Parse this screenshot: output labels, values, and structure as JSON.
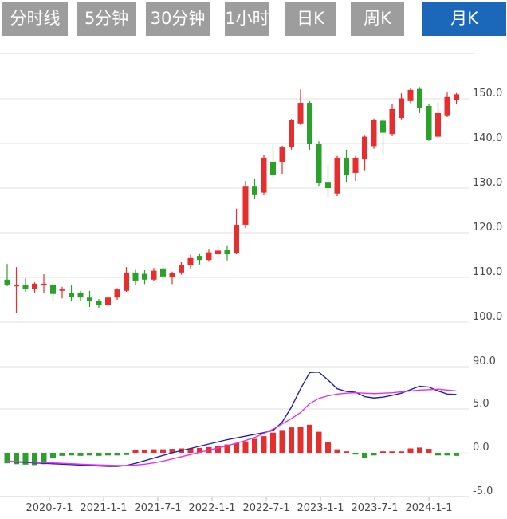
{
  "tabs": [
    {
      "label": "分时线",
      "active": false
    },
    {
      "label": "5分钟",
      "active": false
    },
    {
      "label": "30分钟",
      "active": false
    },
    {
      "label": "1小时",
      "active": false
    },
    {
      "label": "日K",
      "active": false
    },
    {
      "label": "周K",
      "active": false
    },
    {
      "label": "月K",
      "active": true
    }
  ],
  "chart_data": {
    "type": "candlestick+macd",
    "title": "",
    "interval": "monthly",
    "price_axis": {
      "ticks": [
        150,
        140,
        130,
        120,
        110,
        100,
        90
      ],
      "labels": [
        "150.0",
        "140.0",
        "130.0",
        "120.0",
        "110.0",
        "100.0",
        "90.0"
      ],
      "range": [
        90,
        160
      ]
    },
    "macd_axis": {
      "ticks": [
        5,
        0,
        -5
      ],
      "labels": [
        "5.0",
        "0.0",
        "-5.0"
      ],
      "range": [
        -7.5,
        9.8
      ]
    },
    "x_axis_labels": [
      "2020-7-1",
      "2021-1-1",
      "2021-7-1",
      "2022-1-1",
      "2022-7-1",
      "2023-1-1",
      "2023-7-1",
      "2024-1-1"
    ],
    "candles": [
      {
        "d": "2020-03",
        "o": 109.5,
        "h": 113.0,
        "l": 108.0,
        "c": 108.4
      },
      {
        "d": "2020-04",
        "o": 108.0,
        "h": 112.3,
        "l": 102.1,
        "c": 108.3
      },
      {
        "d": "2020-05",
        "o": 108.4,
        "h": 109.8,
        "l": 106.8,
        "c": 107.5
      },
      {
        "d": "2020-06",
        "o": 107.5,
        "h": 108.9,
        "l": 106.6,
        "c": 108.6
      },
      {
        "d": "2020-07",
        "o": 108.2,
        "h": 110.7,
        "l": 106.6,
        "c": 108.6
      },
      {
        "d": "2020-08",
        "o": 108.4,
        "h": 108.8,
        "l": 104.6,
        "c": 106.3
      },
      {
        "d": "2020-09",
        "o": 107.0,
        "h": 107.9,
        "l": 105.3,
        "c": 107.3
      },
      {
        "d": "2020-10",
        "o": 106.6,
        "h": 108.2,
        "l": 104.6,
        "c": 105.7
      },
      {
        "d": "2020-11",
        "o": 106.6,
        "h": 107.0,
        "l": 104.8,
        "c": 105.5
      },
      {
        "d": "2020-12",
        "o": 105.5,
        "h": 107.0,
        "l": 103.4,
        "c": 104.8
      },
      {
        "d": "2021-01",
        "o": 104.8,
        "h": 105.2,
        "l": 103.2,
        "c": 103.8
      },
      {
        "d": "2021-02",
        "o": 103.9,
        "h": 105.8,
        "l": 103.5,
        "c": 105.5
      },
      {
        "d": "2021-03",
        "o": 105.5,
        "h": 107.6,
        "l": 105.0,
        "c": 107.3
      },
      {
        "d": "2021-04",
        "o": 107.0,
        "h": 112.3,
        "l": 106.8,
        "c": 111.1
      },
      {
        "d": "2021-05",
        "o": 111.1,
        "h": 111.7,
        "l": 108.2,
        "c": 109.3
      },
      {
        "d": "2021-06",
        "o": 110.8,
        "h": 111.6,
        "l": 108.5,
        "c": 109.5
      },
      {
        "d": "2021-07",
        "o": 109.5,
        "h": 112.1,
        "l": 109.2,
        "c": 111.5
      },
      {
        "d": "2021-08",
        "o": 112.0,
        "h": 112.7,
        "l": 109.3,
        "c": 110.2
      },
      {
        "d": "2021-09",
        "o": 110.0,
        "h": 111.3,
        "l": 108.5,
        "c": 110.9
      },
      {
        "d": "2021-10",
        "o": 111.1,
        "h": 113.4,
        "l": 110.6,
        "c": 112.7
      },
      {
        "d": "2021-11",
        "o": 112.7,
        "h": 115.1,
        "l": 112.0,
        "c": 114.5
      },
      {
        "d": "2021-12",
        "o": 114.8,
        "h": 115.4,
        "l": 112.9,
        "c": 113.9
      },
      {
        "d": "2022-01",
        "o": 113.9,
        "h": 116.4,
        "l": 113.5,
        "c": 115.6
      },
      {
        "d": "2022-02",
        "o": 115.3,
        "h": 116.9,
        "l": 114.3,
        "c": 116.0
      },
      {
        "d": "2022-03",
        "o": 116.2,
        "h": 117.2,
        "l": 113.8,
        "c": 115.2
      },
      {
        "d": "2022-04",
        "o": 115.5,
        "h": 125.4,
        "l": 115.2,
        "c": 121.8
      },
      {
        "d": "2022-05",
        "o": 121.8,
        "h": 131.6,
        "l": 121.0,
        "c": 130.5
      },
      {
        "d": "2022-06",
        "o": 130.5,
        "h": 132.0,
        "l": 127.5,
        "c": 128.6
      },
      {
        "d": "2022-07",
        "o": 129.0,
        "h": 137.5,
        "l": 128.4,
        "c": 136.8
      },
      {
        "d": "2022-08",
        "o": 135.9,
        "h": 139.6,
        "l": 132.3,
        "c": 132.9
      },
      {
        "d": "2022-09",
        "o": 135.9,
        "h": 139.5,
        "l": 133.2,
        "c": 139.1
      },
      {
        "d": "2022-10",
        "o": 139.1,
        "h": 145.5,
        "l": 138.6,
        "c": 145.2
      },
      {
        "d": "2022-11",
        "o": 144.5,
        "h": 152.1,
        "l": 144.1,
        "c": 149.1
      },
      {
        "d": "2022-12",
        "o": 149.1,
        "h": 149.5,
        "l": 138.6,
        "c": 140.0
      },
      {
        "d": "2023-01",
        "o": 140.0,
        "h": 140.5,
        "l": 130.5,
        "c": 131.1
      },
      {
        "d": "2023-02",
        "o": 131.4,
        "h": 135.2,
        "l": 128.0,
        "c": 130.0
      },
      {
        "d": "2023-03",
        "o": 128.8,
        "h": 137.2,
        "l": 128.2,
        "c": 136.8
      },
      {
        "d": "2023-04",
        "o": 136.8,
        "h": 138.6,
        "l": 131.4,
        "c": 132.9
      },
      {
        "d": "2023-05",
        "o": 133.4,
        "h": 137.2,
        "l": 131.6,
        "c": 136.8
      },
      {
        "d": "2023-06",
        "o": 136.4,
        "h": 141.9,
        "l": 134.0,
        "c": 141.5
      },
      {
        "d": "2023-07",
        "o": 139.4,
        "h": 145.6,
        "l": 138.8,
        "c": 145.2
      },
      {
        "d": "2023-08",
        "o": 145.1,
        "h": 145.7,
        "l": 137.6,
        "c": 142.4
      },
      {
        "d": "2023-09",
        "o": 142.1,
        "h": 148.8,
        "l": 141.8,
        "c": 147.7
      },
      {
        "d": "2023-10",
        "o": 145.7,
        "h": 151.2,
        "l": 145.4,
        "c": 150.1
      },
      {
        "d": "2023-11",
        "o": 149.5,
        "h": 152.4,
        "l": 149.0,
        "c": 152.0
      },
      {
        "d": "2023-12",
        "o": 152.2,
        "h": 152.6,
        "l": 146.8,
        "c": 148.0
      },
      {
        "d": "2024-01",
        "o": 148.4,
        "h": 148.9,
        "l": 140.6,
        "c": 140.9
      },
      {
        "d": "2024-02",
        "o": 141.5,
        "h": 149.2,
        "l": 141.2,
        "c": 146.8
      },
      {
        "d": "2024-03",
        "o": 146.3,
        "h": 151.4,
        "l": 145.9,
        "c": 150.4
      },
      {
        "d": "2024-04",
        "o": 149.8,
        "h": 151.3,
        "l": 148.9,
        "c": 151.0
      }
    ],
    "macd": {
      "dif": [
        -1.0,
        -1.05,
        -1.1,
        -1.15,
        -1.2,
        -1.25,
        -1.3,
        -1.35,
        -1.4,
        -1.45,
        -1.5,
        -1.55,
        -1.55,
        -1.45,
        -1.2,
        -0.9,
        -0.6,
        -0.3,
        0.0,
        0.25,
        0.5,
        0.75,
        1.0,
        1.25,
        1.5,
        1.7,
        1.9,
        2.1,
        2.3,
        2.55,
        3.5,
        5.2,
        7.3,
        9.15,
        9.2,
        8.3,
        7.3,
        7.0,
        6.9,
        6.4,
        6.25,
        6.35,
        6.55,
        6.8,
        7.2,
        7.6,
        7.5,
        7.05,
        6.7,
        6.65
      ],
      "dea": [
        -0.95,
        -1.0,
        -1.05,
        -1.08,
        -1.12,
        -1.15,
        -1.2,
        -1.25,
        -1.3,
        -1.35,
        -1.38,
        -1.42,
        -1.45,
        -1.45,
        -1.4,
        -1.3,
        -1.15,
        -0.95,
        -0.7,
        -0.45,
        -0.2,
        0.05,
        0.3,
        0.55,
        0.8,
        1.1,
        1.4,
        1.75,
        2.2,
        2.7,
        3.3,
        3.9,
        4.6,
        5.6,
        6.2,
        6.5,
        6.7,
        6.8,
        6.85,
        6.8,
        6.75,
        6.8,
        6.85,
        6.95,
        7.05,
        7.15,
        7.2,
        7.25,
        7.15,
        7.05
      ],
      "hist": [
        -1.2,
        -1.3,
        -1.35,
        -1.4,
        -1.3,
        -0.6,
        -0.35,
        -0.3,
        -0.35,
        -0.3,
        -0.35,
        -0.3,
        -0.3,
        -0.25,
        0.3,
        0.35,
        0.4,
        0.4,
        0.45,
        0.5,
        0.5,
        0.55,
        0.65,
        0.8,
        0.95,
        1.1,
        1.3,
        1.6,
        1.9,
        2.3,
        2.6,
        2.9,
        3.0,
        3.2,
        2.4,
        1.2,
        0.4,
        0.1,
        -0.2,
        -0.55,
        -0.3,
        0.05,
        0.1,
        0.1,
        0.5,
        0.6,
        0.45,
        -0.3,
        -0.3,
        -0.35
      ]
    },
    "colors": {
      "up": "#e62e2e",
      "down": "#2aa12a",
      "dif_line": "#2121b5",
      "dea_line": "#e832e8",
      "grid": "#e0e0e0",
      "axis_text": "#4a4a4a",
      "tab_bg": "#9d9d9d",
      "tab_active_bg": "#1b67b9"
    }
  }
}
